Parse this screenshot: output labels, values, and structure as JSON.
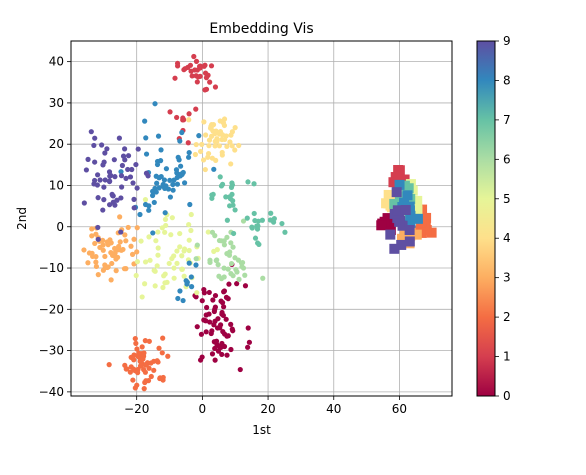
{
  "chart_data": {
    "type": "scatter",
    "title": "Embedding Vis",
    "xlabel": "1st",
    "ylabel": "2nd",
    "xlim": [
      -40,
      76
    ],
    "ylim": [
      -41,
      45
    ],
    "xticks": [
      -20,
      0,
      20,
      40,
      60
    ],
    "yticks": [
      -40,
      -30,
      -20,
      -10,
      0,
      10,
      20,
      30,
      40
    ],
    "grid": true,
    "colormap": "Spectral",
    "colorbar": {
      "min": 0,
      "max": 9,
      "ticks": [
        0,
        1,
        2,
        3,
        4,
        5,
        6,
        7,
        8,
        9
      ]
    },
    "colors": [
      "#9e0142",
      "#d53e4f",
      "#f46d43",
      "#fdae61",
      "#fee08b",
      "#e6f598",
      "#abdda4",
      "#66c2a5",
      "#3288bd",
      "#5e4fa2"
    ],
    "clusters": [
      {
        "label": 0,
        "marker": "circle",
        "cx": 5,
        "cy": -24,
        "sx": 4,
        "sy": 5,
        "n": 70
      },
      {
        "label": 1,
        "marker": "circle",
        "cx": -2,
        "cy": 37,
        "sx": 3,
        "sy": 2,
        "n": 30
      },
      {
        "label": 1,
        "marker": "circle",
        "cx": -6,
        "cy": 25,
        "sx": 1.5,
        "sy": 3,
        "n": 10
      },
      {
        "label": 2,
        "marker": "circle",
        "cx": -17,
        "cy": -33,
        "sx": 3.5,
        "sy": 3,
        "n": 60
      },
      {
        "label": 3,
        "marker": "circle",
        "cx": -28,
        "cy": -5,
        "sx": 4,
        "sy": 4,
        "n": 60
      },
      {
        "label": 4,
        "marker": "circle",
        "cx": 4,
        "cy": 21,
        "sx": 3,
        "sy": 3,
        "n": 50
      },
      {
        "label": 5,
        "marker": "circle",
        "cx": -10,
        "cy": -7,
        "sx": 6,
        "sy": 5,
        "n": 60
      },
      {
        "label": 6,
        "marker": "circle",
        "cx": 8,
        "cy": -8,
        "sx": 4,
        "sy": 4,
        "n": 40
      },
      {
        "label": 7,
        "marker": "circle",
        "cx": 17,
        "cy": 1,
        "sx": 3,
        "sy": 2,
        "n": 20
      },
      {
        "label": 7,
        "marker": "circle",
        "cx": 7,
        "cy": 8,
        "sx": 3,
        "sy": 2.5,
        "n": 20
      },
      {
        "label": 8,
        "marker": "circle",
        "cx": -12,
        "cy": 12,
        "sx": 6,
        "sy": 6,
        "n": 60
      },
      {
        "label": 8,
        "marker": "circle",
        "cx": -5,
        "cy": -15,
        "sx": 2,
        "sy": 3,
        "n": 10
      },
      {
        "label": 9,
        "marker": "circle",
        "cx": -27,
        "cy": 12,
        "sx": 4,
        "sy": 5,
        "n": 60
      },
      {
        "label": 0,
        "marker": "square",
        "cx": 56,
        "cy": 1,
        "sx": 1,
        "sy": 1,
        "n": 8
      },
      {
        "label": 1,
        "marker": "square",
        "cx": 60,
        "cy": 10,
        "sx": 1,
        "sy": 2,
        "n": 8
      },
      {
        "label": 2,
        "marker": "square",
        "cx": 68,
        "cy": 1,
        "sx": 1.5,
        "sy": 1.5,
        "n": 10
      },
      {
        "label": 3,
        "marker": "square",
        "cx": 63,
        "cy": -2,
        "sx": 1.5,
        "sy": 2.5,
        "n": 10
      },
      {
        "label": 4,
        "marker": "square",
        "cx": 57,
        "cy": 6,
        "sx": 1.5,
        "sy": 1.5,
        "n": 8
      },
      {
        "label": 5,
        "marker": "square",
        "cx": 65,
        "cy": 6,
        "sx": 2,
        "sy": 2,
        "n": 10
      },
      {
        "label": 6,
        "marker": "square",
        "cx": 60,
        "cy": 3,
        "sx": 1.5,
        "sy": 2.5,
        "n": 10
      },
      {
        "label": 7,
        "marker": "square",
        "cx": 61,
        "cy": 6,
        "sx": 1.5,
        "sy": 2,
        "n": 10
      },
      {
        "label": 8,
        "marker": "square",
        "cx": 63,
        "cy": 3,
        "sx": 2,
        "sy": 2.5,
        "n": 12
      },
      {
        "label": 9,
        "marker": "square",
        "cx": 60,
        "cy": 0,
        "sx": 1.5,
        "sy": 3,
        "n": 14
      }
    ]
  }
}
